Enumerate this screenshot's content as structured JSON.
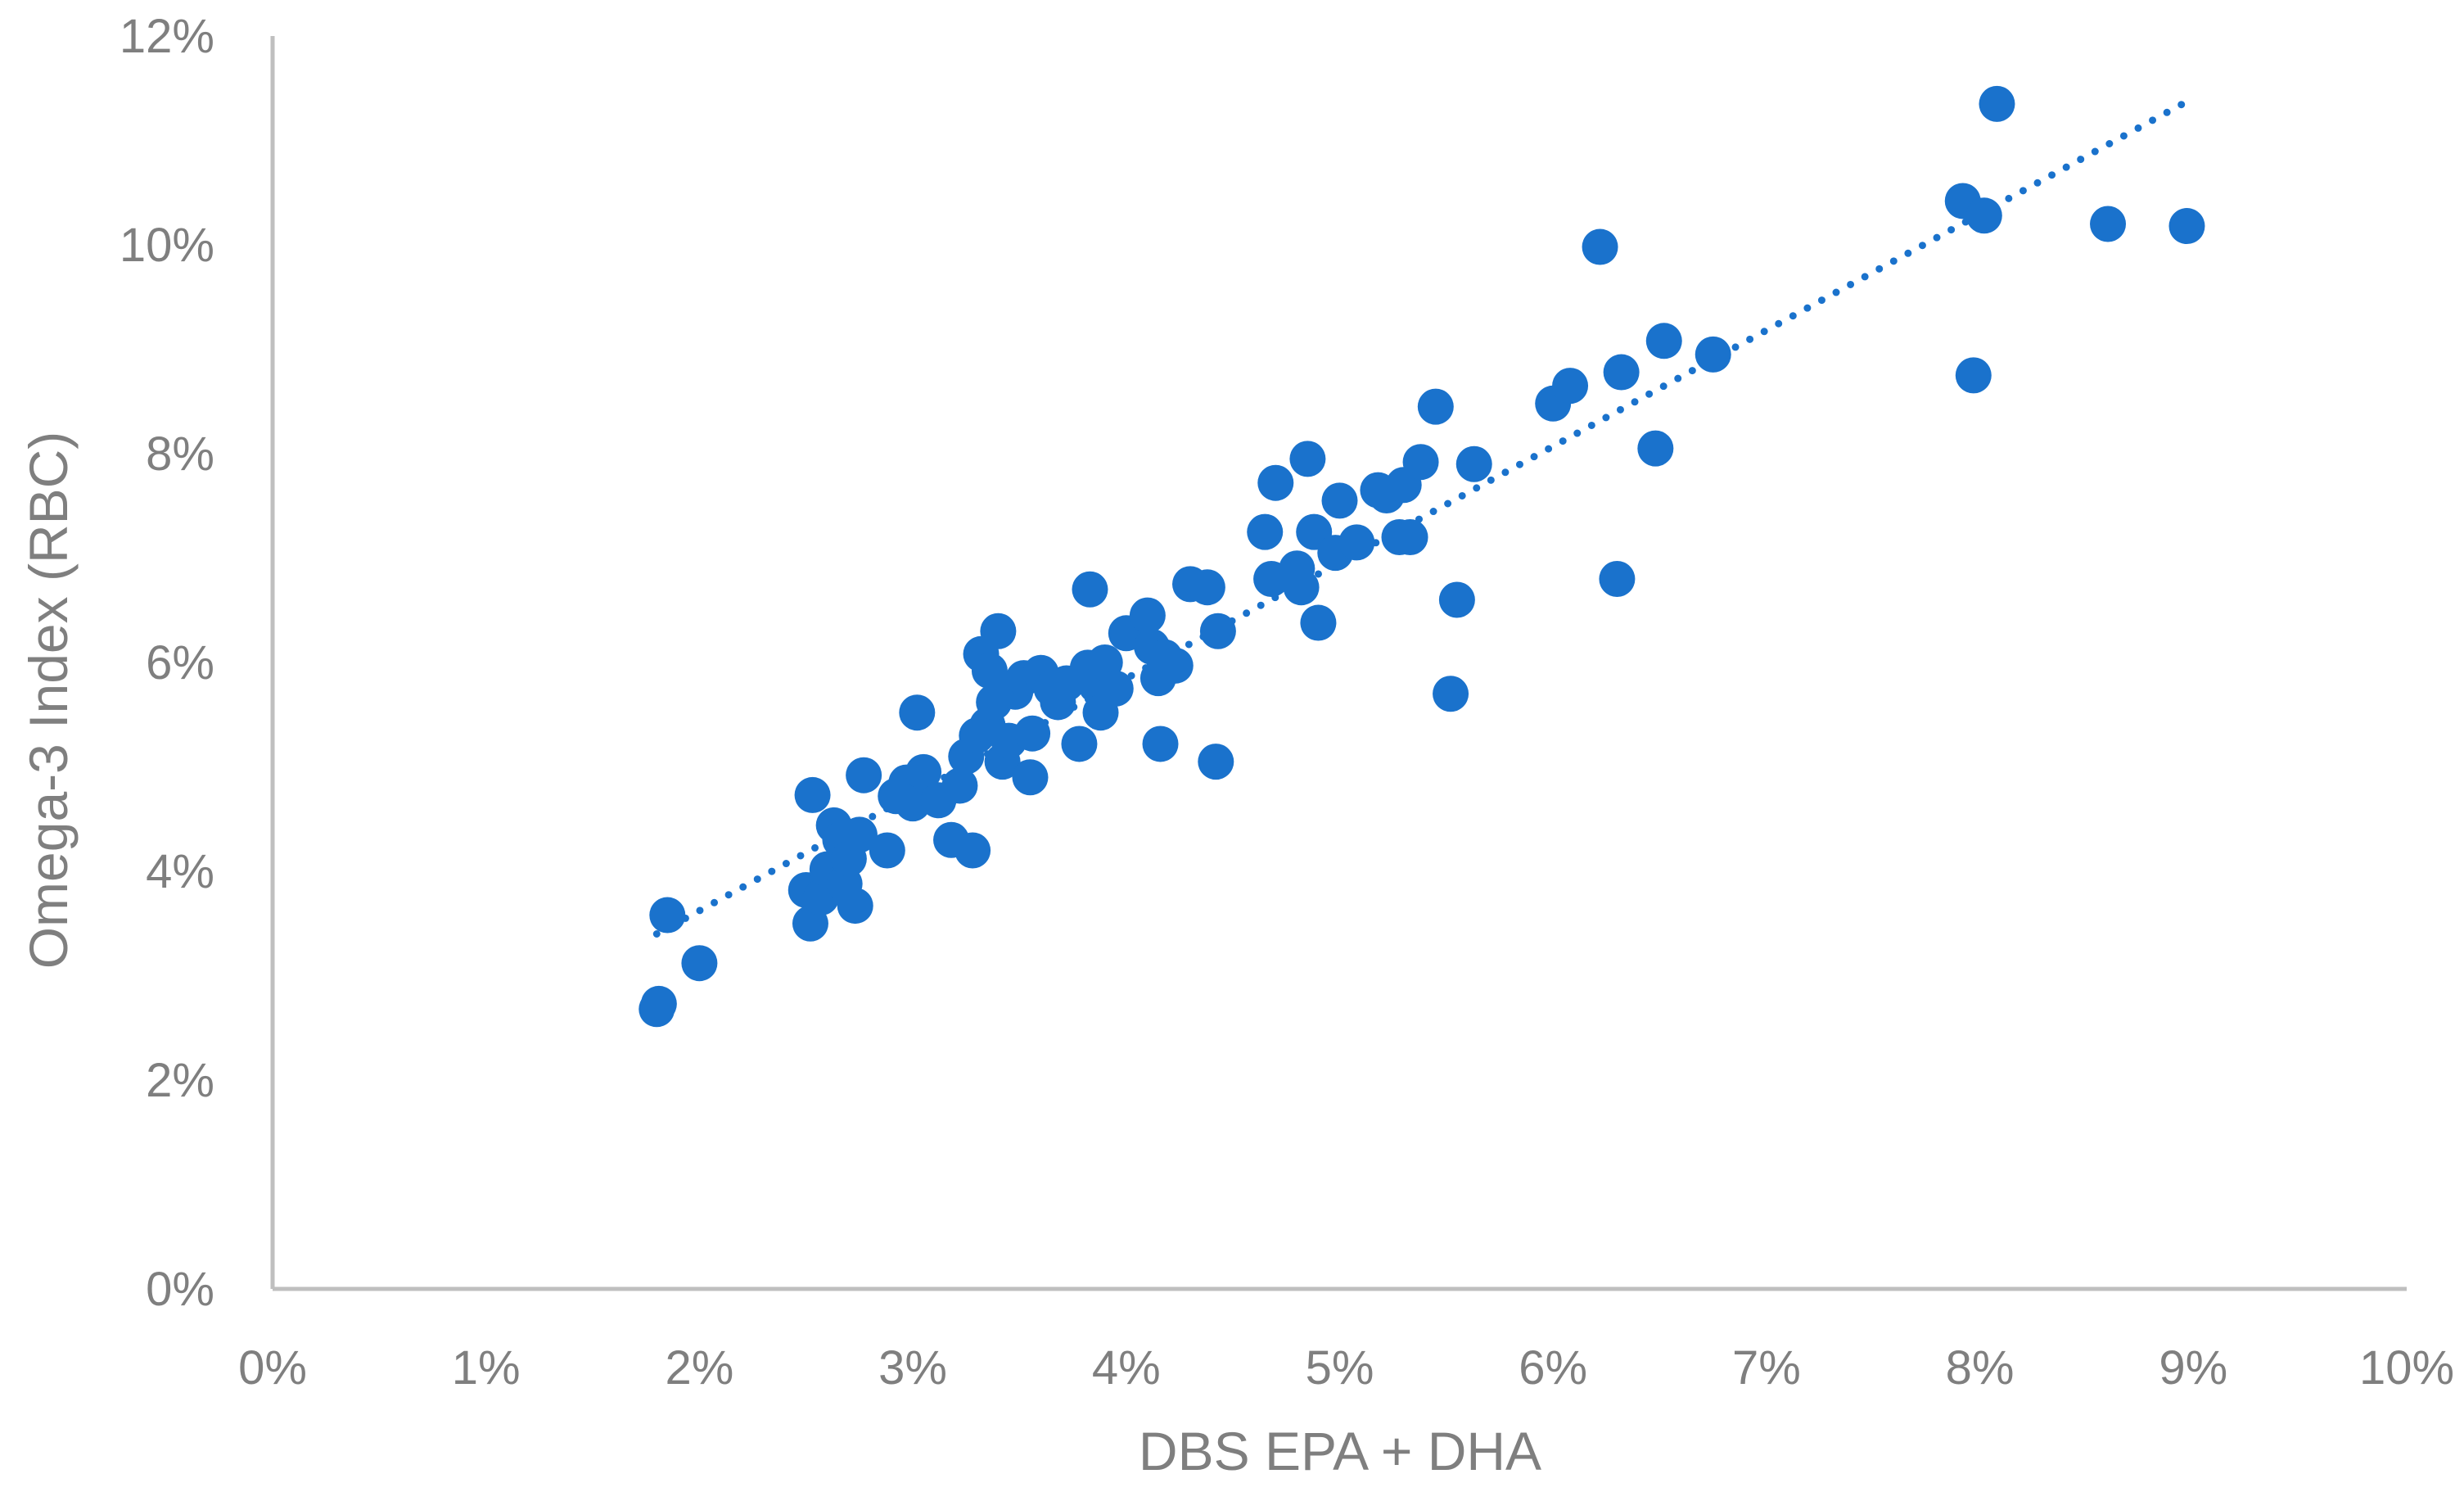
{
  "chart_data": {
    "type": "scatter",
    "title": "",
    "xlabel": "DBS EPA + DHA",
    "ylabel": "Omega-3 Index (RBC)",
    "xlim": [
      0,
      10
    ],
    "ylim": [
      0,
      12
    ],
    "x_ticks": [
      "0%",
      "1%",
      "2%",
      "3%",
      "4%",
      "5%",
      "6%",
      "7%",
      "8%",
      "9%",
      "10%"
    ],
    "y_ticks": [
      "0%",
      "2%",
      "4%",
      "6%",
      "8%",
      "10%",
      "12%"
    ],
    "grid": false,
    "legend": "none",
    "marker_color": "#1a72cc",
    "axis_color": "#bfbfbf",
    "text_color": "#7f7f7f",
    "trendline": {
      "style": "dotted",
      "x": [
        1.8,
        8.95
      ],
      "y": [
        3.4,
        11.35
      ]
    },
    "points": [
      {
        "x": 1.8,
        "y": 2.68
      },
      {
        "x": 1.81,
        "y": 2.73
      },
      {
        "x": 1.85,
        "y": 3.58
      },
      {
        "x": 2.0,
        "y": 3.12
      },
      {
        "x": 2.5,
        "y": 3.82
      },
      {
        "x": 2.52,
        "y": 3.5
      },
      {
        "x": 2.53,
        "y": 4.73
      },
      {
        "x": 2.57,
        "y": 3.75
      },
      {
        "x": 2.6,
        "y": 4.02
      },
      {
        "x": 2.63,
        "y": 4.44
      },
      {
        "x": 2.66,
        "y": 4.3
      },
      {
        "x": 2.68,
        "y": 3.88
      },
      {
        "x": 2.7,
        "y": 4.12
      },
      {
        "x": 2.73,
        "y": 3.67
      },
      {
        "x": 2.75,
        "y": 4.35
      },
      {
        "x": 2.77,
        "y": 4.92
      },
      {
        "x": 2.88,
        "y": 4.2
      },
      {
        "x": 2.92,
        "y": 4.72
      },
      {
        "x": 2.97,
        "y": 4.85
      },
      {
        "x": 3.0,
        "y": 4.65
      },
      {
        "x": 3.02,
        "y": 5.52
      },
      {
        "x": 3.05,
        "y": 4.95
      },
      {
        "x": 3.12,
        "y": 4.68
      },
      {
        "x": 3.18,
        "y": 4.3
      },
      {
        "x": 3.22,
        "y": 4.82
      },
      {
        "x": 3.25,
        "y": 5.1
      },
      {
        "x": 3.28,
        "y": 4.2
      },
      {
        "x": 3.3,
        "y": 5.3
      },
      {
        "x": 3.32,
        "y": 6.08
      },
      {
        "x": 3.35,
        "y": 5.4
      },
      {
        "x": 3.36,
        "y": 5.92
      },
      {
        "x": 3.38,
        "y": 5.62
      },
      {
        "x": 3.4,
        "y": 6.3
      },
      {
        "x": 3.42,
        "y": 5.05
      },
      {
        "x": 3.45,
        "y": 5.25
      },
      {
        "x": 3.48,
        "y": 5.72
      },
      {
        "x": 3.52,
        "y": 5.85
      },
      {
        "x": 3.55,
        "y": 4.9
      },
      {
        "x": 3.56,
        "y": 5.32
      },
      {
        "x": 3.6,
        "y": 5.9
      },
      {
        "x": 3.65,
        "y": 5.75
      },
      {
        "x": 3.68,
        "y": 5.62
      },
      {
        "x": 3.72,
        "y": 5.8
      },
      {
        "x": 3.78,
        "y": 5.22
      },
      {
        "x": 3.82,
        "y": 5.95
      },
      {
        "x": 3.83,
        "y": 6.7
      },
      {
        "x": 3.86,
        "y": 5.78
      },
      {
        "x": 3.88,
        "y": 5.52
      },
      {
        "x": 3.9,
        "y": 6.0
      },
      {
        "x": 3.95,
        "y": 5.75
      },
      {
        "x": 4.0,
        "y": 6.28
      },
      {
        "x": 4.1,
        "y": 6.45
      },
      {
        "x": 4.12,
        "y": 6.15
      },
      {
        "x": 4.15,
        "y": 5.85
      },
      {
        "x": 4.16,
        "y": 5.22
      },
      {
        "x": 4.18,
        "y": 6.05
      },
      {
        "x": 4.23,
        "y": 5.97
      },
      {
        "x": 4.3,
        "y": 6.75
      },
      {
        "x": 4.38,
        "y": 6.72
      },
      {
        "x": 4.42,
        "y": 5.05
      },
      {
        "x": 4.43,
        "y": 6.3
      },
      {
        "x": 4.65,
        "y": 7.25
      },
      {
        "x": 4.68,
        "y": 6.8
      },
      {
        "x": 4.7,
        "y": 7.72
      },
      {
        "x": 4.8,
        "y": 6.9
      },
      {
        "x": 4.82,
        "y": 6.72
      },
      {
        "x": 4.85,
        "y": 7.95
      },
      {
        "x": 4.88,
        "y": 7.25
      },
      {
        "x": 4.9,
        "y": 6.38
      },
      {
        "x": 4.98,
        "y": 7.05
      },
      {
        "x": 5.0,
        "y": 7.55
      },
      {
        "x": 5.08,
        "y": 7.15
      },
      {
        "x": 5.18,
        "y": 7.65
      },
      {
        "x": 5.22,
        "y": 7.6
      },
      {
        "x": 5.28,
        "y": 7.2
      },
      {
        "x": 5.3,
        "y": 7.7
      },
      {
        "x": 5.33,
        "y": 7.2
      },
      {
        "x": 5.38,
        "y": 7.92
      },
      {
        "x": 5.45,
        "y": 8.45
      },
      {
        "x": 5.52,
        "y": 5.7
      },
      {
        "x": 5.55,
        "y": 6.6
      },
      {
        "x": 5.63,
        "y": 7.9
      },
      {
        "x": 6.0,
        "y": 8.48
      },
      {
        "x": 6.08,
        "y": 8.65
      },
      {
        "x": 6.22,
        "y": 9.98
      },
      {
        "x": 6.3,
        "y": 6.8
      },
      {
        "x": 6.32,
        "y": 8.78
      },
      {
        "x": 6.48,
        "y": 8.05
      },
      {
        "x": 6.52,
        "y": 9.08
      },
      {
        "x": 6.75,
        "y": 8.95
      },
      {
        "x": 7.92,
        "y": 10.42
      },
      {
        "x": 7.97,
        "y": 8.75
      },
      {
        "x": 8.02,
        "y": 10.28
      },
      {
        "x": 8.08,
        "y": 11.35
      },
      {
        "x": 8.6,
        "y": 10.2
      },
      {
        "x": 8.97,
        "y": 10.18
      }
    ]
  }
}
